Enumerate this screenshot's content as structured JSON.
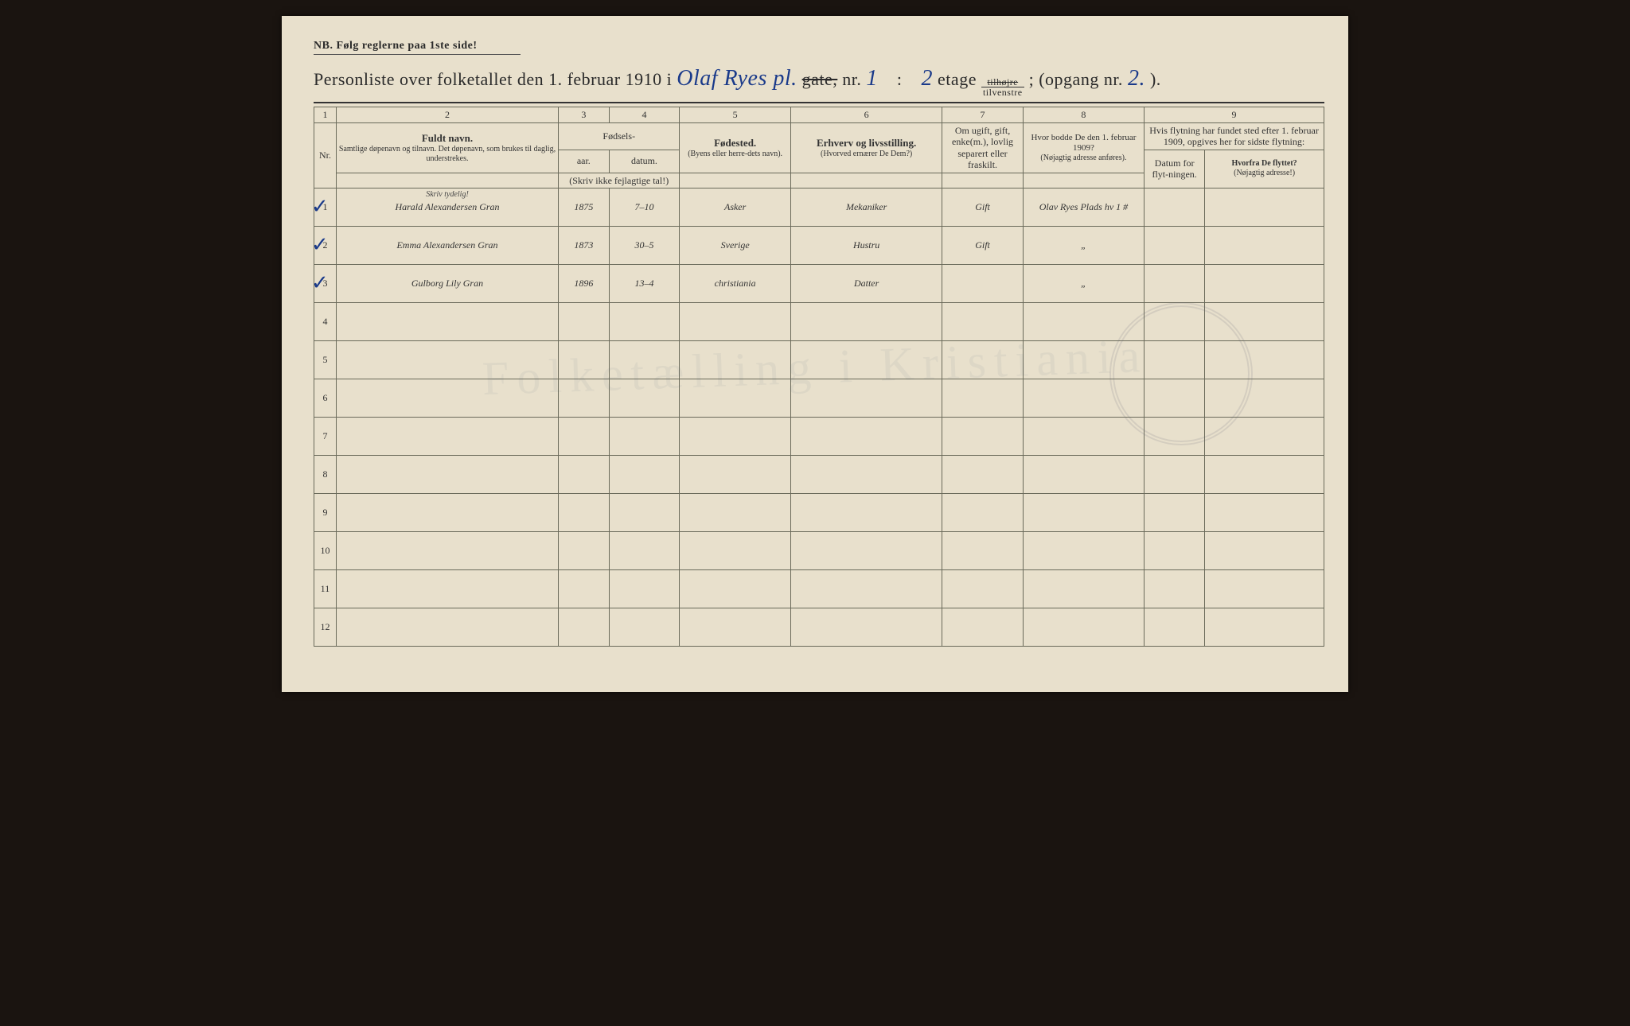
{
  "colors": {
    "page_bg": "#e8e0cc",
    "outer_bg": "#1a1410",
    "ink_print": "#2a2a2a",
    "ink_hand": "#1a3a8a",
    "rule": "#6a6a5a"
  },
  "nb": "NB.  Følg reglerne paa 1ste side!",
  "title": {
    "prefix": "Personliste over folketallet den 1. februar 1910 i",
    "street_hand": "Olaf Ryes pl.",
    "gate_strike": "gate,",
    "nr_label": "nr.",
    "nr_value": "1",
    "colon": ":",
    "etage_value": "2",
    "etage_label": "etage",
    "side_top": "tilhøjre",
    "side_bottom": "tilvenstre",
    "opgang_label": "; (opgang  nr.",
    "opgang_value": "2.",
    "opgang_close": ")."
  },
  "column_numbers": [
    "1",
    "2",
    "3",
    "4",
    "5",
    "6",
    "7",
    "8",
    "9"
  ],
  "headers": {
    "nr": "Nr.",
    "fuldt_navn": "Fuldt navn.",
    "fuldt_navn_sub": "Samtlige døpenavn og tilnavn. Det døpenavn, som brukes til daglig, understrekes.",
    "fodsels": "Fødsels-",
    "aar": "aar.",
    "datum": "datum.",
    "fodsels_sub": "(Skriv ikke fejlagtige tal!)",
    "fodested": "Fødested.",
    "fodested_sub": "(Byens eller herre-dets navn).",
    "erhverv": "Erhverv og livsstilling.",
    "erhverv_sub": "(Hvorved ernærer De Dem?)",
    "civil": "Om ugift, gift, enke(m.), lovlig separert eller fraskilt.",
    "addr1909": "Hvor bodde De den 1. februar 1909?",
    "addr1909_sub": "(Nøjagtig adresse anføres).",
    "flyt_top": "Hvis flytning har fundet sted efter 1. februar 1909, opgives her for sidste flytning:",
    "flyt_datum": "Datum for flyt-ningen.",
    "flyt_hvorfra": "Hvorfra De flyttet?",
    "flyt_hvorfra_sub": "(Nøjagtig adresse!)",
    "skriv_tydelig": "Skriv tydelig!"
  },
  "rows": [
    {
      "n": "1",
      "check": true,
      "name": "Harald Alexandersen Gran",
      "year": "1875",
      "date": "7–10",
      "birthplace": "Asker",
      "occupation": "Mekaniker",
      "status": "Gift",
      "addr": "Olav Ryes Plads hv 1 #"
    },
    {
      "n": "2",
      "check": true,
      "name": "Emma Alexandersen Gran",
      "year": "1873",
      "date": "30–5",
      "birthplace": "Sverige",
      "occupation": "Hustru",
      "status": "Gift",
      "addr": "„"
    },
    {
      "n": "3",
      "check": true,
      "name": "Gulborg Lily Gran",
      "year": "1896",
      "date": "13–4",
      "birthplace": "christiania",
      "occupation": "Datter",
      "status": "",
      "addr": "„"
    },
    {
      "n": "4"
    },
    {
      "n": "5"
    },
    {
      "n": "6"
    },
    {
      "n": "7"
    },
    {
      "n": "8"
    },
    {
      "n": "9"
    },
    {
      "n": "10"
    },
    {
      "n": "11"
    },
    {
      "n": "12"
    }
  ],
  "column_widths_pct": {
    "nr": 2.2,
    "name": 22,
    "year": 5,
    "date": 7,
    "birthplace": 11,
    "occupation": 15,
    "civil": 8,
    "addr1909": 12,
    "flyt_date": 6,
    "flyt_from": 11.8
  }
}
